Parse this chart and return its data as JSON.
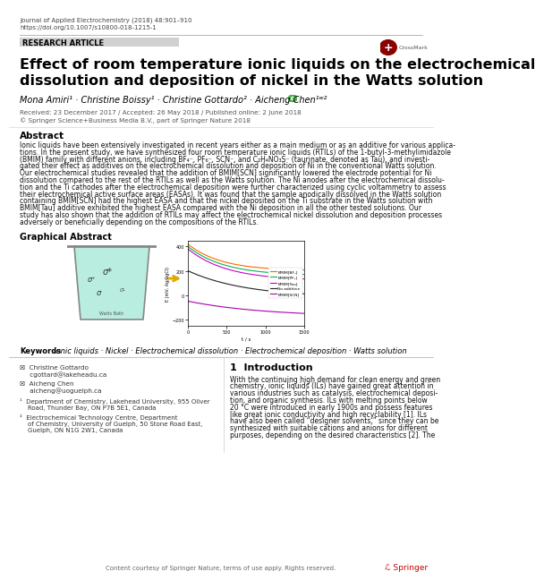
{
  "journal_line1": "Journal of Applied Electrochemistry (2018) 48:901–910",
  "journal_line2": "https://doi.org/10.1007/s10800-018-1215-1",
  "research_article_label": "RESEARCH ARTICLE",
  "title_line1": "Effect of room temperature ionic liquids on the electrochemical",
  "title_line2": "dissolution and deposition of nickel in the Watts solution",
  "authors_line": "Mona Amiri¹ · Christine Boissy¹ · Christine Gottardo² · Aicheng Chen¹ʷ²",
  "received": "Received: 23 December 2017 / Accepted: 26 May 2018 / Published online: 2 June 2018",
  "copyright": "© Springer Science+Business Media B.V., part of Springer Nature 2018",
  "abstract_title": "Abstract",
  "abstract_lines": [
    "Ionic liquids have been extensively investigated in recent years either as a main medium or as an additive for various applica-",
    "tions. In the present study, we have synthesized four room temperature ionic liquids (RTILs) of the 1-butyl-3-methylimidazole",
    "(BMIM) family with different anions, including BF₄⁻, PF₆⁻, SCN⁻, and C₂H₄NO₃S⁻ (taurinate, denoted as Tau), and investi-",
    "gated their effect as additives on the electrochemical dissolution and deposition of Ni in the conventional Watts solution.",
    "Our electrochemical studies revealed that the addition of BMIM[SCN] significantly lowered the electrode potential for Ni",
    "dissolution compared to the rest of the RTILs as well as the Watts solution. The Ni anodes after the electrochemical dissolu-",
    "tion and the Ti cathodes after the electrochemical deposition were further characterized using cyclic voltammetry to assess",
    "their electrochemical active surface areas (EASAs). It was found that the sample anodically dissolved in the Watts solution",
    "containing BMIM[SCN] had the highest EASA and that the nickel deposited on the Ti substrate in the Watts solution with",
    "BMIM[Tau] additive exhibited the highest EASA compared with the Ni deposition in all the other tested solutions. Our",
    "study has also shown that the addition of RTILs may affect the electrochemical nickel dissolution and deposition processes",
    "adversely or beneficially depending on the compositions of the RTILs."
  ],
  "graphical_abstract_title": "Graphical Abstract",
  "keywords_bold": "Keywords",
  "keywords_text": "  Ionic liquids · Nickel · Electrochemical dissolution · Electrochemical deposition · Watts solution",
  "intro_title": "1  Introduction",
  "intro_lines": [
    "With the continuing high demand for clean energy and green",
    "chemistry, ionic liquids (ILs) have gained great attention in",
    "various industries such as catalysis, electrochemical deposi-",
    "tion, and organic synthesis. ILs with melting points below",
    "20 °C were introduced in early 1900s and possess features",
    "like great ionic conductivity and high recyclability [1]. ILs",
    "have also been called “designer solvents,” since they can be",
    "synthesized with suitable cations and anions for different",
    "purposes, depending on the desired characteristics [2]. The"
  ],
  "fn1a": "✉  Christine Gottardo",
  "fn1b": "     cgottard@lakeheadu.ca",
  "fn2a": "✉  Aicheng Chen",
  "fn2b": "     aicheng@uoguelph.ca",
  "fn3a": "¹  Department of Chemistry, Lakehead University, 955 Oliver",
  "fn3b": "    Road, Thunder Bay, ON P7B 5E1, Canada",
  "fn4a": "²  Electrochemical Technology Centre, Department",
  "fn4b": "    of Chemistry, University of Guelph, 50 Stone Road East,",
  "fn4c": "    Guelph, ON N1G 2W1, Canada",
  "springer_logo": "ℒ Springer",
  "content_notice": "Content courtesy of Springer Nature, terms of use apply. Rights reserved.",
  "bg_color": "#ffffff"
}
